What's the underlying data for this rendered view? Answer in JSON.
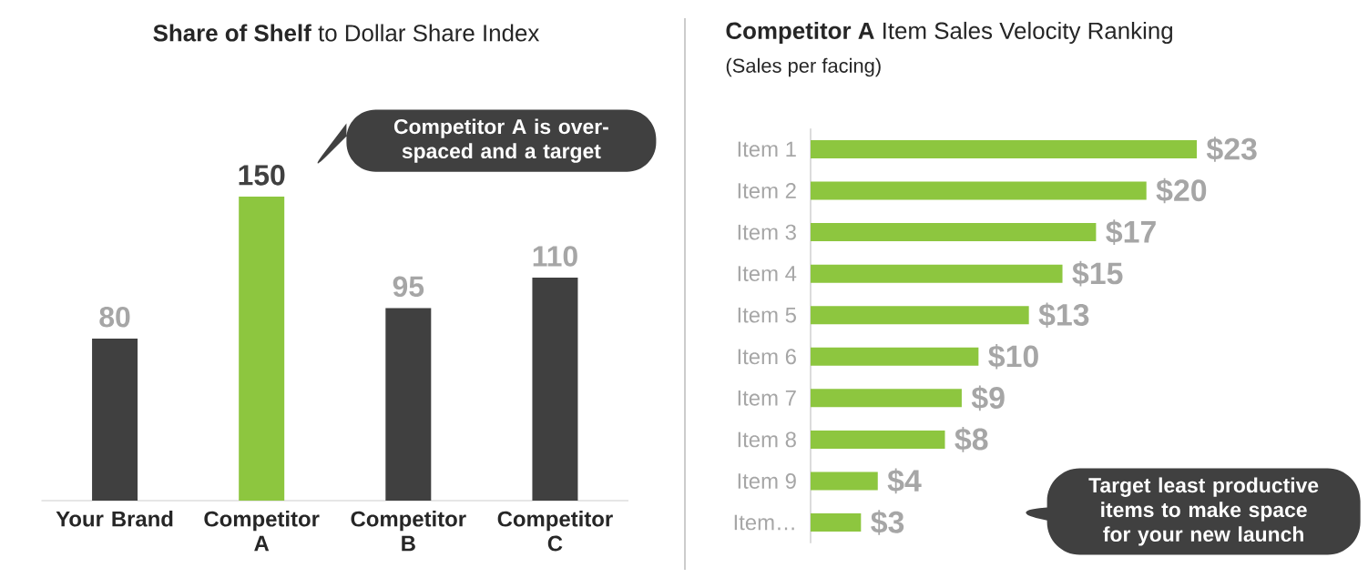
{
  "chart_data": [
    {
      "type": "bar",
      "title": "**Share of Shelf** to Dollar Share Index",
      "categories": [
        "Your Brand",
        "Competitor A",
        "Competitor B",
        "Competitor C"
      ],
      "values": [
        80,
        150,
        95,
        110
      ],
      "colors": [
        "#404040",
        "#8dc63f",
        "#404040",
        "#404040"
      ],
      "data_labels": true,
      "annotations": [
        "Competitor A is over-spaced and a target"
      ]
    },
    {
      "type": "bar",
      "orientation": "horizontal",
      "title": "**Competitor A** Item Sales Velocity Ranking",
      "subtitle": "(Sales per facing)",
      "categories": [
        "Item 1",
        "Item 2",
        "Item 3",
        "Item 4",
        "Item 5",
        "Item 6",
        "Item 7",
        "Item 8",
        "Item 9",
        "Item…"
      ],
      "values": [
        23,
        20,
        17,
        15,
        13,
        10,
        9,
        8,
        4,
        3
      ],
      "color": "#8dc63f",
      "value_labels": [
        "$23",
        "$20",
        "$17",
        "$15",
        "$13",
        "$10",
        "$9",
        "$8",
        "$4",
        "$3"
      ],
      "annotations": [
        "Target least productive items to make space for your new launch"
      ]
    }
  ]
}
